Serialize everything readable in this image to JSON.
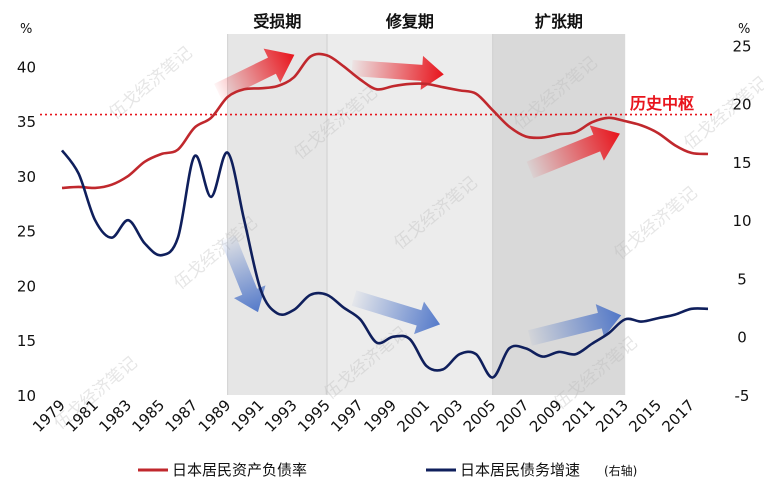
{
  "chart_data": {
    "type": "line",
    "left_axis": {
      "unit": "%",
      "ticks": [
        10,
        15,
        20,
        25,
        30,
        35,
        40
      ],
      "range": [
        10,
        43.5
      ]
    },
    "right_axis": {
      "unit": "%",
      "ticks": [
        -5,
        0,
        5,
        10,
        15,
        20,
        25
      ],
      "range": [
        -5,
        26.5
      ]
    },
    "x_ticks": [
      "1979",
      "1981",
      "1983",
      "1985",
      "1987",
      "1989",
      "1991",
      "1993",
      "1995",
      "1997",
      "1999",
      "2001",
      "2003",
      "2005",
      "2007",
      "2009",
      "2011",
      "2013",
      "2015",
      "2017"
    ],
    "phases": [
      {
        "label": "受损期",
        "start": 1989,
        "end": 1995,
        "color": "#e6e6e6"
      },
      {
        "label": "修复期",
        "start": 1995,
        "end": 2005,
        "color": "#ececec"
      },
      {
        "label": "扩张期",
        "start": 2005,
        "end": 2013,
        "color": "#d9d9d9"
      }
    ],
    "reference_line": {
      "label": "历史中枢",
      "value": 35.6,
      "axis": "left",
      "color": "#e8141c"
    },
    "series": [
      {
        "name": "日本居民资产负债率",
        "axis": "left",
        "color": "#c0282d",
        "x": [
          1979,
          1980,
          1981,
          1982,
          1983,
          1984,
          1985,
          1986,
          1987,
          1988,
          1989,
          1990,
          1991,
          1992,
          1993,
          1994,
          1995,
          1996,
          1997,
          1998,
          1999,
          2000,
          2001,
          2002,
          2003,
          2004,
          2005,
          2006,
          2007,
          2008,
          2009,
          2010,
          2011,
          2012,
          2013,
          2014,
          2015,
          2016,
          2017,
          2018
        ],
        "values": [
          28.9,
          29.0,
          28.9,
          29.2,
          30.0,
          31.3,
          32.0,
          32.4,
          34.4,
          35.3,
          37.2,
          37.9,
          38.0,
          38.2,
          39.0,
          40.9,
          41.0,
          40.0,
          38.8,
          37.9,
          38.2,
          38.4,
          38.4,
          38.1,
          37.8,
          37.5,
          36.0,
          34.5,
          33.6,
          33.5,
          33.8,
          34.0,
          34.9,
          35.3,
          35.0,
          34.6,
          33.9,
          32.8,
          32.1,
          32.0
        ]
      },
      {
        "name": "日本居民债务增速",
        "axis": "right",
        "color": "#0f1f5c",
        "x": [
          1979,
          1980,
          1981,
          1982,
          1983,
          1984,
          1985,
          1986,
          1987,
          1988,
          1989,
          1990,
          1991,
          1992,
          1993,
          1994,
          1995,
          1996,
          1997,
          1998,
          1999,
          2000,
          2001,
          2002,
          2003,
          2004,
          2005,
          2006,
          2007,
          2008,
          2009,
          2010,
          2011,
          2012,
          2013,
          2014,
          2015,
          2016,
          2017,
          2018
        ],
        "values": [
          16.0,
          14.0,
          10.0,
          8.5,
          10.0,
          8.0,
          7.0,
          8.5,
          15.5,
          12.0,
          15.8,
          10.0,
          4.0,
          2.0,
          2.3,
          3.6,
          3.6,
          2.5,
          1.5,
          -0.5,
          0.0,
          -0.2,
          -2.5,
          -2.8,
          -1.5,
          -1.5,
          -3.5,
          -1.0,
          -1.0,
          -1.7,
          -1.3,
          -1.5,
          -0.6,
          0.3,
          1.5,
          1.3,
          1.6,
          1.9,
          2.4,
          2.4
        ]
      }
    ],
    "legend": {
      "position": "bottom",
      "note": "(右轴)"
    }
  },
  "watermark": "伍戈经济笔记"
}
